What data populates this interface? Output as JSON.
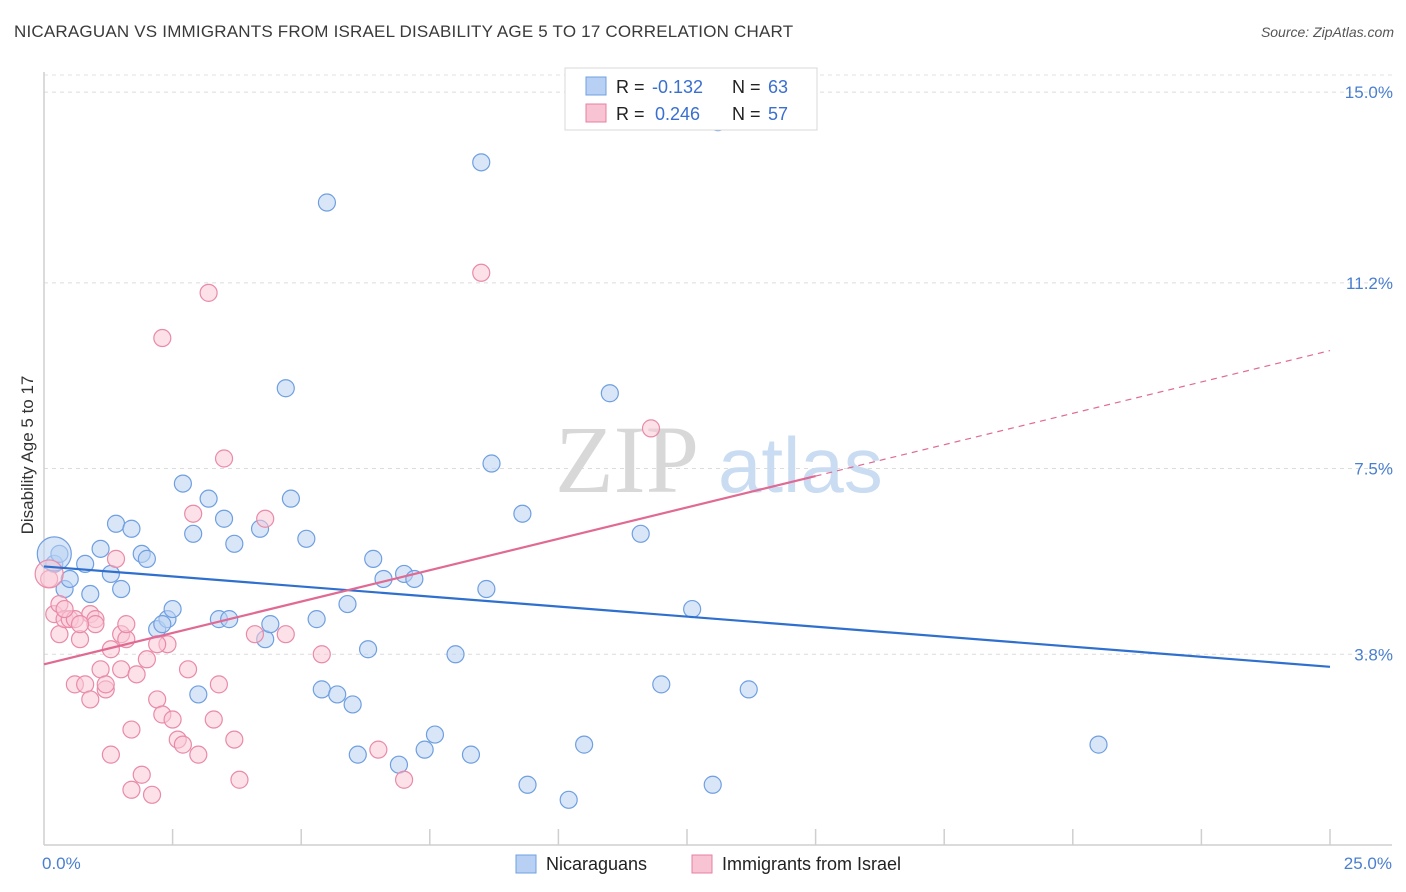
{
  "header": {
    "title": "NICARAGUAN VS IMMIGRANTS FROM ISRAEL DISABILITY AGE 5 TO 17 CORRELATION CHART",
    "source": "Source: ZipAtlas.com"
  },
  "chart_data": {
    "type": "scatter",
    "title": "NICARAGUAN VS IMMIGRANTS FROM ISRAEL DISABILITY AGE 5 TO 17 CORRELATION CHART",
    "ylabel": "Disability Age 5 to 17",
    "xlabel": "",
    "xlim": [
      0,
      25
    ],
    "ylim": [
      0,
      15.4
    ],
    "x_tick_labels": [
      "0.0%",
      "25.0%"
    ],
    "y_ticks": [
      3.8,
      7.5,
      11.2,
      15.0
    ],
    "y_tick_labels": [
      "3.8%",
      "7.5%",
      "11.2%",
      "15.0%"
    ],
    "watermark": {
      "zip": "ZIP",
      "atlas": "atlas"
    },
    "legend": {
      "r_label": "R =",
      "n_label": "N =",
      "entries": [
        {
          "name": "Nicaraguans",
          "r": "-0.132",
          "n": "63",
          "color": "#6fa0e0",
          "fill": "#b8d0f3"
        },
        {
          "name": "Immigrants from Israel",
          "r": "0.246",
          "n": "57",
          "color": "#e87fa0",
          "fill": "#f8c3d3"
        }
      ]
    },
    "series": [
      {
        "name": "Nicaraguans",
        "stroke": "#6f9fe0",
        "fill": "#b9d1f3",
        "trend": {
          "x0": 0.0,
          "y0": 5.55,
          "x1": 25.0,
          "y1": 3.55,
          "color": "#2f6fce",
          "dashed_to": null
        },
        "points": [
          [
            0.2,
            5.6
          ],
          [
            0.4,
            5.1
          ],
          [
            0.5,
            5.3
          ],
          [
            0.8,
            5.6
          ],
          [
            0.9,
            5.0
          ],
          [
            1.1,
            5.9
          ],
          [
            1.3,
            5.4
          ],
          [
            1.4,
            6.4
          ],
          [
            1.5,
            5.1
          ],
          [
            1.7,
            6.3
          ],
          [
            1.9,
            5.8
          ],
          [
            2.0,
            5.7
          ],
          [
            2.2,
            4.3
          ],
          [
            2.4,
            4.5
          ],
          [
            2.5,
            4.7
          ],
          [
            2.7,
            7.2
          ],
          [
            2.9,
            6.2
          ],
          [
            3.0,
            3.0
          ],
          [
            3.2,
            6.9
          ],
          [
            3.4,
            4.5
          ],
          [
            3.5,
            6.5
          ],
          [
            3.6,
            4.5
          ],
          [
            3.7,
            6.0
          ],
          [
            4.2,
            6.3
          ],
          [
            4.3,
            4.1
          ],
          [
            4.4,
            4.4
          ],
          [
            4.7,
            9.1
          ],
          [
            4.8,
            6.9
          ],
          [
            5.1,
            6.1
          ],
          [
            5.3,
            4.5
          ],
          [
            5.4,
            3.1
          ],
          [
            5.5,
            12.8
          ],
          [
            5.7,
            3.0
          ],
          [
            5.9,
            4.8
          ],
          [
            6.0,
            2.8
          ],
          [
            6.1,
            1.8
          ],
          [
            6.3,
            3.9
          ],
          [
            6.4,
            5.7
          ],
          [
            6.6,
            5.3
          ],
          [
            6.9,
            1.6
          ],
          [
            7.0,
            5.4
          ],
          [
            7.2,
            5.3
          ],
          [
            7.4,
            1.9
          ],
          [
            7.6,
            2.2
          ],
          [
            8.0,
            3.8
          ],
          [
            8.3,
            1.8
          ],
          [
            8.5,
            13.6
          ],
          [
            8.6,
            5.1
          ],
          [
            8.7,
            7.6
          ],
          [
            9.3,
            6.6
          ],
          [
            9.4,
            1.2
          ],
          [
            10.2,
            0.9
          ],
          [
            10.5,
            2.0
          ],
          [
            11.0,
            9.0
          ],
          [
            11.6,
            6.2
          ],
          [
            12.0,
            3.2
          ],
          [
            12.6,
            4.7
          ],
          [
            13.0,
            1.2
          ],
          [
            13.1,
            14.4
          ],
          [
            13.7,
            3.1
          ],
          [
            20.5,
            2.0
          ],
          [
            0.3,
            5.8
          ],
          [
            2.3,
            4.4
          ]
        ]
      },
      {
        "name": "Immigrants from Israel",
        "stroke": "#e98aa8",
        "fill": "#f9c9d7",
        "trend": {
          "x0": 0.0,
          "y0": 3.6,
          "x1": 15.0,
          "y1": 7.35,
          "color": "#e06a93",
          "dashed_x1": 25.0,
          "dashed_y1": 9.85
        },
        "points": [
          [
            0.1,
            5.3
          ],
          [
            0.2,
            4.6
          ],
          [
            0.3,
            4.8
          ],
          [
            0.3,
            4.2
          ],
          [
            0.4,
            4.5
          ],
          [
            0.5,
            4.5
          ],
          [
            0.6,
            3.2
          ],
          [
            0.7,
            4.1
          ],
          [
            0.8,
            3.2
          ],
          [
            0.9,
            4.6
          ],
          [
            0.9,
            2.9
          ],
          [
            1.0,
            4.5
          ],
          [
            1.1,
            3.5
          ],
          [
            1.2,
            3.1
          ],
          [
            1.2,
            3.2
          ],
          [
            1.3,
            1.8
          ],
          [
            1.4,
            5.7
          ],
          [
            1.5,
            3.5
          ],
          [
            1.5,
            4.2
          ],
          [
            1.6,
            4.1
          ],
          [
            1.7,
            2.3
          ],
          [
            1.7,
            1.1
          ],
          [
            1.8,
            3.4
          ],
          [
            1.9,
            1.4
          ],
          [
            2.0,
            3.7
          ],
          [
            2.1,
            1.0
          ],
          [
            2.2,
            2.9
          ],
          [
            2.3,
            2.6
          ],
          [
            2.3,
            10.1
          ],
          [
            2.4,
            4.0
          ],
          [
            2.5,
            2.5
          ],
          [
            2.6,
            2.1
          ],
          [
            2.7,
            2.0
          ],
          [
            2.8,
            3.5
          ],
          [
            2.9,
            6.6
          ],
          [
            3.0,
            1.8
          ],
          [
            3.2,
            11.0
          ],
          [
            3.3,
            2.5
          ],
          [
            3.4,
            3.2
          ],
          [
            3.5,
            7.7
          ],
          [
            3.7,
            2.1
          ],
          [
            3.8,
            1.3
          ],
          [
            4.1,
            4.2
          ],
          [
            4.3,
            6.5
          ],
          [
            4.7,
            4.2
          ],
          [
            5.4,
            3.8
          ],
          [
            6.5,
            1.9
          ],
          [
            7.0,
            1.3
          ],
          [
            8.5,
            11.4
          ],
          [
            11.8,
            8.3
          ],
          [
            1.0,
            4.4
          ],
          [
            0.6,
            4.5
          ],
          [
            1.6,
            4.4
          ],
          [
            0.4,
            4.7
          ],
          [
            2.2,
            4.0
          ],
          [
            0.7,
            4.4
          ],
          [
            1.3,
            3.9
          ]
        ]
      }
    ]
  },
  "bottom_legend": {
    "items": [
      {
        "label": "Nicaraguans"
      },
      {
        "label": "Immigrants from Israel"
      }
    ]
  }
}
